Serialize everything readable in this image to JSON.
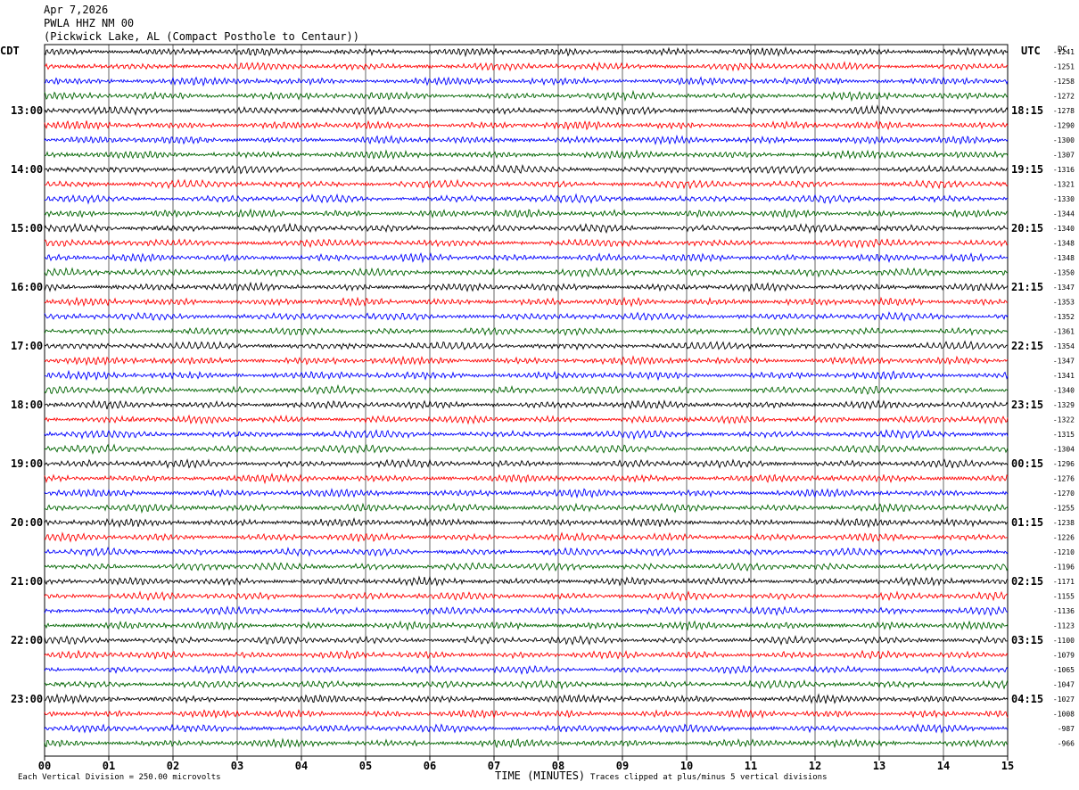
{
  "header": {
    "date": "Apr 7,2026",
    "station": "PWLA HHZ NM 00",
    "location": "(Pickwick Lake, AL (Compact Posthole to Centaur))"
  },
  "left_zone": "CDT",
  "right_zone": "UTC",
  "dc_label": "DC",
  "footer": {
    "scale_note": "Each Vertical Division =  250.00 microvolts",
    "axis_title": "TIME (MINUTES)",
    "clip_note": "Traces clipped at plus/minus 5 vertical divisions"
  },
  "colors": [
    "#000000",
    "#ff0000",
    "#0000ff",
    "#006400"
  ],
  "chart_data": {
    "type": "line",
    "xlabel": "TIME (MINUTES)",
    "xlim": [
      0,
      15
    ],
    "x_ticks": [
      "00",
      "01",
      "02",
      "03",
      "04",
      "05",
      "06",
      "07",
      "08",
      "09",
      "10",
      "11",
      "12",
      "13",
      "14",
      "15"
    ],
    "left_hour_labels": [
      "13:00",
      "14:00",
      "15:00",
      "16:00",
      "17:00",
      "18:00",
      "19:00",
      "20:00",
      "21:00",
      "22:00",
      "23:00"
    ],
    "right_hour_labels": [
      "18:15",
      "19:15",
      "20:15",
      "21:15",
      "22:15",
      "23:15",
      "00:15",
      "01:15",
      "02:15",
      "03:15",
      "04:15"
    ],
    "dc_offsets": [
      -1241,
      -1251,
      -1258,
      -1272,
      -1278,
      -1290,
      -1300,
      -1307,
      -1316,
      -1321,
      -1330,
      -1344,
      -1340,
      -1348,
      -1348,
      -1350,
      -1347,
      -1353,
      -1352,
      -1361,
      -1354,
      -1347,
      -1341,
      -1340,
      -1329,
      -1322,
      -1315,
      -1304,
      -1296,
      -1276,
      -1270,
      -1255,
      -1238,
      -1226,
      -1210,
      -1196,
      -1171,
      -1155,
      -1136,
      -1123,
      -1100,
      -1079,
      -1065,
      -1047,
      -1027,
      -1008,
      -987,
      -966
    ],
    "series_count": 48
  }
}
